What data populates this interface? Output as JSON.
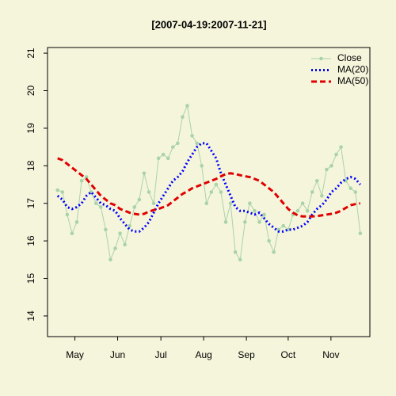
{
  "chart_data": {
    "type": "line",
    "title": "[2007-04-19:2007-11-21]",
    "series": [
      {
        "name": "Close",
        "color": "#a9d3a9",
        "style": "points",
        "values": [
          17.35,
          17.3,
          16.7,
          16.2,
          16.5,
          17.6,
          17.7,
          17.3,
          17.0,
          16.9,
          16.3,
          15.5,
          15.8,
          16.2,
          15.9,
          16.4,
          16.9,
          17.1,
          17.8,
          17.3,
          17.0,
          18.2,
          18.3,
          18.2,
          18.5,
          18.6,
          19.3,
          19.6,
          18.8,
          18.6,
          18.0,
          17.0,
          17.3,
          17.5,
          17.3,
          16.5,
          17.0,
          15.7,
          15.5,
          16.5,
          17.0,
          16.8,
          16.5,
          16.7,
          16.0,
          15.7,
          16.3,
          16.4,
          16.3,
          16.7,
          16.8,
          17.0,
          16.8,
          17.3,
          17.6,
          17.2,
          17.9,
          18.0,
          18.3,
          18.5,
          17.6,
          17.4,
          17.3,
          16.2
        ]
      },
      {
        "name": "MA(20)",
        "color": "#0000ff",
        "style": "dotted",
        "values": [
          17.2,
          17.1,
          16.9,
          16.85,
          16.9,
          17.0,
          17.2,
          17.3,
          17.15,
          17.0,
          16.95,
          16.85,
          16.8,
          16.6,
          16.45,
          16.3,
          16.25,
          16.25,
          16.35,
          16.5,
          16.75,
          17.0,
          17.2,
          17.4,
          17.6,
          17.7,
          17.85,
          18.1,
          18.3,
          18.5,
          18.6,
          18.6,
          18.4,
          18.2,
          17.8,
          17.5,
          17.2,
          16.9,
          16.8,
          16.8,
          16.75,
          16.7,
          16.75,
          16.6,
          16.45,
          16.35,
          16.25,
          16.25,
          16.3,
          16.3,
          16.35,
          16.4,
          16.5,
          16.7,
          16.85,
          16.95,
          17.1,
          17.3,
          17.4,
          17.55,
          17.65,
          17.7,
          17.65,
          17.5
        ]
      },
      {
        "name": "MA(50)",
        "color": "#e00000",
        "style": "dashed",
        "values": [
          18.2,
          18.15,
          18.05,
          17.95,
          17.85,
          17.75,
          17.65,
          17.5,
          17.35,
          17.2,
          17.1,
          17.0,
          16.95,
          16.85,
          16.8,
          16.75,
          16.72,
          16.7,
          16.72,
          16.78,
          16.82,
          16.85,
          16.9,
          16.95,
          17.05,
          17.15,
          17.25,
          17.32,
          17.4,
          17.45,
          17.5,
          17.55,
          17.6,
          17.65,
          17.72,
          17.78,
          17.8,
          17.78,
          17.75,
          17.72,
          17.7,
          17.65,
          17.6,
          17.5,
          17.4,
          17.3,
          17.15,
          17.0,
          16.85,
          16.75,
          16.68,
          16.65,
          16.65,
          16.65,
          16.66,
          16.68,
          16.7,
          16.72,
          16.75,
          16.8,
          16.88,
          16.95,
          16.98,
          17.0
        ]
      }
    ],
    "xlim": [
      -2.1,
      65.0
    ],
    "xticks": [
      {
        "value": 3.6,
        "label": "May"
      },
      {
        "value": 12.5,
        "label": "Jun"
      },
      {
        "value": 21.5,
        "label": "Jul"
      },
      {
        "value": 30.4,
        "label": "Aug"
      },
      {
        "value": 39.3,
        "label": "Sep"
      },
      {
        "value": 48.0,
        "label": "Oct"
      },
      {
        "value": 56.9,
        "label": "Nov"
      }
    ],
    "ylim": [
      13.45,
      21.15
    ],
    "yticks": [
      14,
      15,
      16,
      17,
      18,
      19,
      20,
      21
    ],
    "legend": "top-right"
  }
}
